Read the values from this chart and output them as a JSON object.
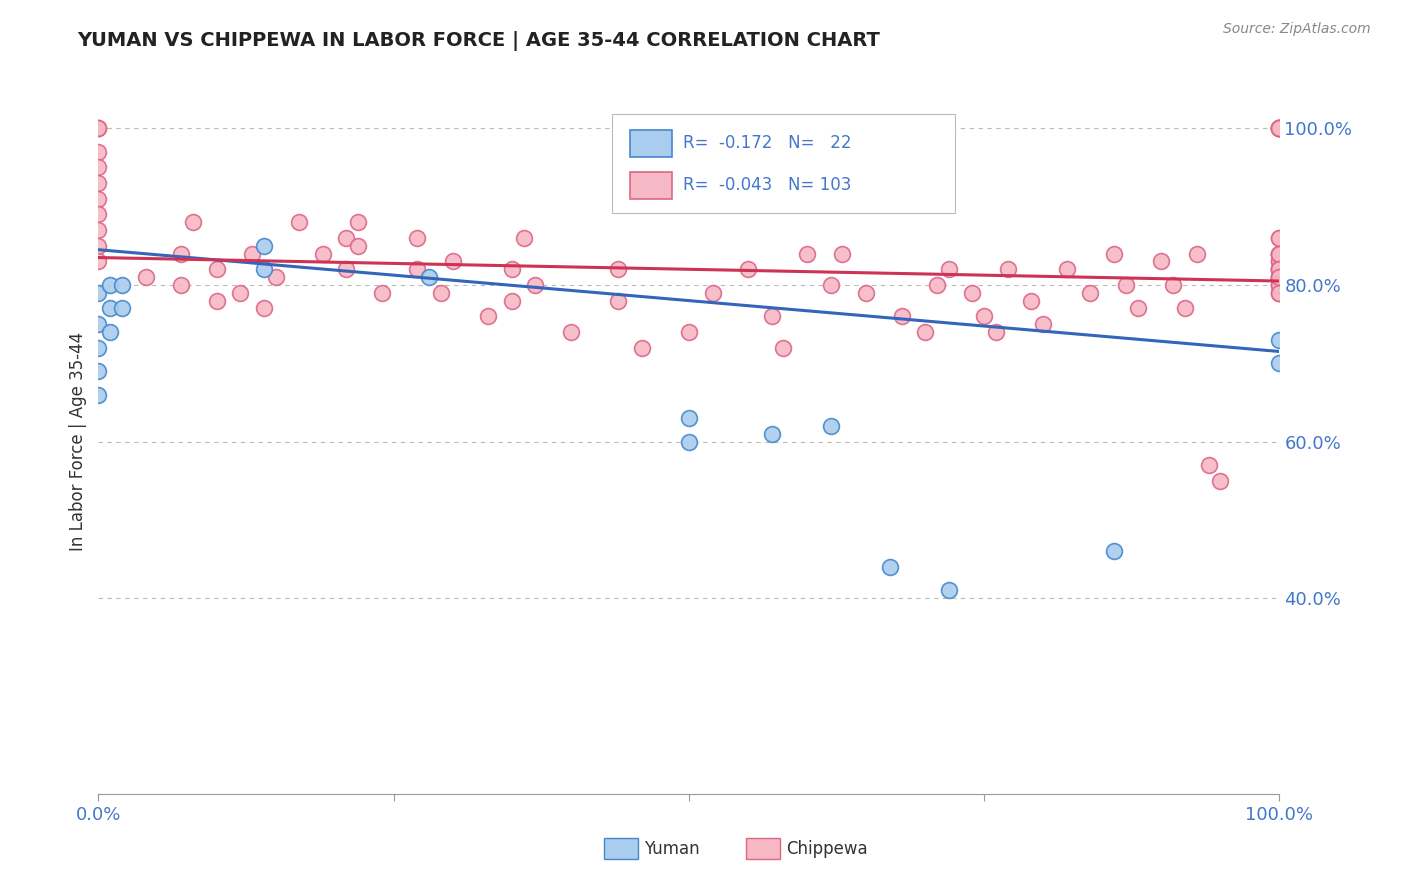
{
  "title": "YUMAN VS CHIPPEWA IN LABOR FORCE | AGE 35-44 CORRELATION CHART",
  "source_text": "Source: ZipAtlas.com",
  "ylabel_label": "In Labor Force | Age 35-44",
  "xlim": [
    0.0,
    1.0
  ],
  "ylim": [
    0.15,
    1.05
  ],
  "legend_r_yuman": "-0.172",
  "legend_n_yuman": "22",
  "legend_r_chippewa": "-0.043",
  "legend_n_chippewa": "103",
  "yuman_fill_color": "#aaccee",
  "chippewa_fill_color": "#f5b8c4",
  "yuman_edge_color": "#4488cc",
  "chippewa_edge_color": "#dd6688",
  "yuman_line_color": "#3366bb",
  "chippewa_line_color": "#cc3355",
  "background_color": "#ffffff",
  "grid_color": "#bbbbbb",
  "title_color": "#222222",
  "axis_tick_color": "#4477cc",
  "ytick_vals": [
    0.4,
    0.6,
    0.8,
    1.0
  ],
  "ytick_labels": [
    "40.0%",
    "60.0%",
    "80.0%",
    "100.0%"
  ],
  "yuman_x": [
    0.0,
    0.0,
    0.0,
    0.0,
    0.0,
    0.01,
    0.01,
    0.01,
    0.02,
    0.02,
    0.14,
    0.14,
    0.28,
    0.5,
    0.5,
    0.57,
    0.62,
    0.67,
    0.72,
    0.86,
    1.0,
    1.0
  ],
  "yuman_y": [
    0.79,
    0.75,
    0.72,
    0.69,
    0.66,
    0.8,
    0.77,
    0.74,
    0.8,
    0.77,
    0.85,
    0.82,
    0.81,
    0.63,
    0.6,
    0.61,
    0.62,
    0.44,
    0.41,
    0.46,
    0.73,
    0.7
  ],
  "chippewa_x": [
    0.0,
    0.0,
    0.0,
    0.0,
    0.0,
    0.0,
    0.0,
    0.0,
    0.0,
    0.0,
    0.0,
    0.04,
    0.07,
    0.07,
    0.08,
    0.1,
    0.1,
    0.12,
    0.13,
    0.14,
    0.15,
    0.17,
    0.19,
    0.21,
    0.21,
    0.22,
    0.22,
    0.24,
    0.27,
    0.27,
    0.29,
    0.3,
    0.33,
    0.35,
    0.35,
    0.36,
    0.37,
    0.4,
    0.44,
    0.44,
    0.46,
    0.5,
    0.52,
    0.55,
    0.57,
    0.58,
    0.6,
    0.62,
    0.63,
    0.65,
    0.68,
    0.7,
    0.71,
    0.72,
    0.74,
    0.75,
    0.76,
    0.77,
    0.79,
    0.8,
    0.82,
    0.84,
    0.86,
    0.87,
    0.88,
    0.9,
    0.91,
    0.92,
    0.93,
    0.94,
    0.95,
    1.0,
    1.0,
    1.0,
    1.0,
    1.0,
    1.0,
    1.0,
    1.0,
    1.0,
    1.0,
    1.0,
    1.0,
    1.0,
    1.0,
    1.0,
    1.0,
    1.0,
    1.0,
    1.0,
    1.0,
    1.0,
    1.0,
    1.0,
    1.0,
    1.0,
    1.0,
    1.0,
    1.0,
    1.0,
    1.0,
    1.0,
    1.0
  ],
  "chippewa_y": [
    1.0,
    1.0,
    1.0,
    0.97,
    0.95,
    0.93,
    0.91,
    0.89,
    0.87,
    0.85,
    0.83,
    0.81,
    0.84,
    0.8,
    0.88,
    0.82,
    0.78,
    0.79,
    0.84,
    0.77,
    0.81,
    0.88,
    0.84,
    0.86,
    0.82,
    0.88,
    0.85,
    0.79,
    0.82,
    0.86,
    0.79,
    0.83,
    0.76,
    0.82,
    0.78,
    0.86,
    0.8,
    0.74,
    0.82,
    0.78,
    0.72,
    0.74,
    0.79,
    0.82,
    0.76,
    0.72,
    0.84,
    0.8,
    0.84,
    0.79,
    0.76,
    0.74,
    0.8,
    0.82,
    0.79,
    0.76,
    0.74,
    0.82,
    0.78,
    0.75,
    0.82,
    0.79,
    0.84,
    0.8,
    0.77,
    0.83,
    0.8,
    0.77,
    0.84,
    0.57,
    0.55,
    1.0,
    1.0,
    1.0,
    1.0,
    1.0,
    1.0,
    1.0,
    1.0,
    0.86,
    0.84,
    0.82,
    0.81,
    0.84,
    0.82,
    0.8,
    0.79,
    0.83,
    0.81,
    0.84,
    0.82,
    0.8,
    0.79,
    0.83,
    0.81,
    0.84,
    0.82,
    0.86,
    0.84,
    0.82,
    0.8,
    0.79,
    0.81
  ],
  "yuman_trendline_x": [
    0.0,
    1.0
  ],
  "yuman_trendline_y": [
    0.845,
    0.715
  ],
  "chippewa_trendline_x": [
    0.0,
    1.0
  ],
  "chippewa_trendline_y": [
    0.835,
    0.805
  ]
}
